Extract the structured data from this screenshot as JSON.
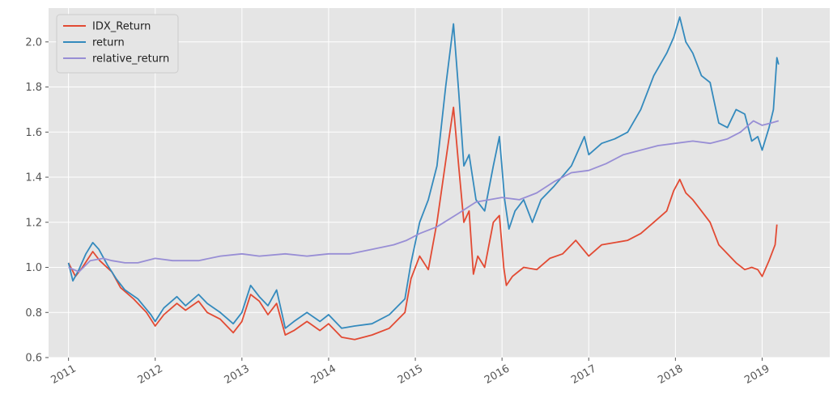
{
  "chart_data": {
    "type": "line",
    "title": "",
    "xlabel": "",
    "ylabel": "",
    "xlim": [
      2010.77,
      2019.78
    ],
    "ylim": [
      0.6,
      2.15
    ],
    "grid": true,
    "legend_position": "top-left",
    "x_ticks": [
      {
        "label": "2011",
        "value": 2011
      },
      {
        "label": "2012",
        "value": 2012
      },
      {
        "label": "2013",
        "value": 2013
      },
      {
        "label": "2014",
        "value": 2014
      },
      {
        "label": "2015",
        "value": 2015
      },
      {
        "label": "2016",
        "value": 2016
      },
      {
        "label": "2017",
        "value": 2017
      },
      {
        "label": "2018",
        "value": 2018
      },
      {
        "label": "2019",
        "value": 2019
      }
    ],
    "y_ticks": [
      {
        "label": "0.6",
        "value": 0.6
      },
      {
        "label": "0.8",
        "value": 0.8
      },
      {
        "label": "1.0",
        "value": 1.0
      },
      {
        "label": "1.2",
        "value": 1.2
      },
      {
        "label": "1.4",
        "value": 1.4
      },
      {
        "label": "1.6",
        "value": 1.6
      },
      {
        "label": "1.8",
        "value": 1.8
      },
      {
        "label": "2.0",
        "value": 2.0
      }
    ],
    "series": [
      {
        "name": "IDX_Return",
        "color": "#E24A33",
        "points": [
          [
            2011.0,
            1.02
          ],
          [
            2011.08,
            0.96
          ],
          [
            2011.16,
            1.0
          ],
          [
            2011.28,
            1.07
          ],
          [
            2011.36,
            1.03
          ],
          [
            2011.5,
            0.98
          ],
          [
            2011.6,
            0.91
          ],
          [
            2011.75,
            0.86
          ],
          [
            2011.9,
            0.8
          ],
          [
            2012.0,
            0.74
          ],
          [
            2012.1,
            0.79
          ],
          [
            2012.25,
            0.84
          ],
          [
            2012.35,
            0.81
          ],
          [
            2012.5,
            0.85
          ],
          [
            2012.6,
            0.8
          ],
          [
            2012.75,
            0.77
          ],
          [
            2012.9,
            0.71
          ],
          [
            2013.0,
            0.76
          ],
          [
            2013.1,
            0.88
          ],
          [
            2013.2,
            0.85
          ],
          [
            2013.3,
            0.79
          ],
          [
            2013.4,
            0.84
          ],
          [
            2013.5,
            0.7
          ],
          [
            2013.6,
            0.72
          ],
          [
            2013.75,
            0.76
          ],
          [
            2013.9,
            0.72
          ],
          [
            2014.0,
            0.75
          ],
          [
            2014.15,
            0.69
          ],
          [
            2014.3,
            0.68
          ],
          [
            2014.5,
            0.7
          ],
          [
            2014.7,
            0.73
          ],
          [
            2014.88,
            0.8
          ],
          [
            2014.95,
            0.95
          ],
          [
            2015.05,
            1.05
          ],
          [
            2015.15,
            0.99
          ],
          [
            2015.25,
            1.2
          ],
          [
            2015.38,
            1.55
          ],
          [
            2015.44,
            1.71
          ],
          [
            2015.5,
            1.45
          ],
          [
            2015.56,
            1.2
          ],
          [
            2015.62,
            1.25
          ],
          [
            2015.67,
            0.97
          ],
          [
            2015.72,
            1.05
          ],
          [
            2015.8,
            1.0
          ],
          [
            2015.9,
            1.2
          ],
          [
            2015.97,
            1.23
          ],
          [
            2016.02,
            1.0
          ],
          [
            2016.05,
            0.92
          ],
          [
            2016.12,
            0.96
          ],
          [
            2016.25,
            1.0
          ],
          [
            2016.4,
            0.99
          ],
          [
            2016.55,
            1.04
          ],
          [
            2016.7,
            1.06
          ],
          [
            2016.85,
            1.12
          ],
          [
            2017.0,
            1.05
          ],
          [
            2017.15,
            1.1
          ],
          [
            2017.3,
            1.11
          ],
          [
            2017.45,
            1.12
          ],
          [
            2017.6,
            1.15
          ],
          [
            2017.75,
            1.2
          ],
          [
            2017.9,
            1.25
          ],
          [
            2017.98,
            1.34
          ],
          [
            2018.05,
            1.39
          ],
          [
            2018.12,
            1.33
          ],
          [
            2018.2,
            1.3
          ],
          [
            2018.3,
            1.25
          ],
          [
            2018.4,
            1.2
          ],
          [
            2018.5,
            1.1
          ],
          [
            2018.6,
            1.06
          ],
          [
            2018.7,
            1.02
          ],
          [
            2018.8,
            0.99
          ],
          [
            2018.88,
            1.0
          ],
          [
            2018.95,
            0.99
          ],
          [
            2019.0,
            0.96
          ],
          [
            2019.08,
            1.03
          ],
          [
            2019.15,
            1.1
          ],
          [
            2019.17,
            1.19
          ]
        ]
      },
      {
        "name": "return",
        "color": "#348ABD",
        "points": [
          [
            2011.0,
            1.02
          ],
          [
            2011.05,
            0.94
          ],
          [
            2011.12,
            0.99
          ],
          [
            2011.2,
            1.06
          ],
          [
            2011.28,
            1.11
          ],
          [
            2011.35,
            1.08
          ],
          [
            2011.45,
            1.01
          ],
          [
            2011.55,
            0.95
          ],
          [
            2011.65,
            0.9
          ],
          [
            2011.8,
            0.86
          ],
          [
            2011.95,
            0.79
          ],
          [
            2012.0,
            0.76
          ],
          [
            2012.1,
            0.82
          ],
          [
            2012.25,
            0.87
          ],
          [
            2012.35,
            0.83
          ],
          [
            2012.5,
            0.88
          ],
          [
            2012.6,
            0.84
          ],
          [
            2012.75,
            0.8
          ],
          [
            2012.9,
            0.75
          ],
          [
            2013.0,
            0.8
          ],
          [
            2013.1,
            0.92
          ],
          [
            2013.2,
            0.87
          ],
          [
            2013.3,
            0.83
          ],
          [
            2013.4,
            0.9
          ],
          [
            2013.5,
            0.73
          ],
          [
            2013.6,
            0.76
          ],
          [
            2013.75,
            0.8
          ],
          [
            2013.9,
            0.76
          ],
          [
            2014.0,
            0.79
          ],
          [
            2014.15,
            0.73
          ],
          [
            2014.3,
            0.74
          ],
          [
            2014.5,
            0.75
          ],
          [
            2014.7,
            0.79
          ],
          [
            2014.88,
            0.86
          ],
          [
            2014.95,
            1.02
          ],
          [
            2015.05,
            1.2
          ],
          [
            2015.15,
            1.3
          ],
          [
            2015.25,
            1.45
          ],
          [
            2015.35,
            1.8
          ],
          [
            2015.44,
            2.08
          ],
          [
            2015.5,
            1.78
          ],
          [
            2015.56,
            1.45
          ],
          [
            2015.62,
            1.5
          ],
          [
            2015.7,
            1.3
          ],
          [
            2015.8,
            1.25
          ],
          [
            2015.9,
            1.45
          ],
          [
            2015.97,
            1.58
          ],
          [
            2016.03,
            1.3
          ],
          [
            2016.08,
            1.17
          ],
          [
            2016.15,
            1.25
          ],
          [
            2016.25,
            1.3
          ],
          [
            2016.35,
            1.2
          ],
          [
            2016.45,
            1.3
          ],
          [
            2016.6,
            1.36
          ],
          [
            2016.8,
            1.45
          ],
          [
            2016.95,
            1.58
          ],
          [
            2017.0,
            1.5
          ],
          [
            2017.15,
            1.55
          ],
          [
            2017.3,
            1.57
          ],
          [
            2017.45,
            1.6
          ],
          [
            2017.6,
            1.7
          ],
          [
            2017.75,
            1.85
          ],
          [
            2017.9,
            1.95
          ],
          [
            2017.98,
            2.02
          ],
          [
            2018.05,
            2.11
          ],
          [
            2018.12,
            2.0
          ],
          [
            2018.2,
            1.95
          ],
          [
            2018.3,
            1.85
          ],
          [
            2018.4,
            1.82
          ],
          [
            2018.5,
            1.64
          ],
          [
            2018.6,
            1.62
          ],
          [
            2018.7,
            1.7
          ],
          [
            2018.8,
            1.68
          ],
          [
            2018.88,
            1.56
          ],
          [
            2018.95,
            1.58
          ],
          [
            2019.0,
            1.52
          ],
          [
            2019.08,
            1.62
          ],
          [
            2019.13,
            1.7
          ],
          [
            2019.17,
            1.93
          ],
          [
            2019.19,
            1.9
          ]
        ]
      },
      {
        "name": "relative_return",
        "color": "#988ED5",
        "points": [
          [
            2011.0,
            1.0
          ],
          [
            2011.12,
            0.98
          ],
          [
            2011.25,
            1.03
          ],
          [
            2011.4,
            1.04
          ],
          [
            2011.5,
            1.03
          ],
          [
            2011.65,
            1.02
          ],
          [
            2011.8,
            1.02
          ],
          [
            2012.0,
            1.04
          ],
          [
            2012.2,
            1.03
          ],
          [
            2012.5,
            1.03
          ],
          [
            2012.75,
            1.05
          ],
          [
            2013.0,
            1.06
          ],
          [
            2013.2,
            1.05
          ],
          [
            2013.5,
            1.06
          ],
          [
            2013.75,
            1.05
          ],
          [
            2014.0,
            1.06
          ],
          [
            2014.25,
            1.06
          ],
          [
            2014.5,
            1.08
          ],
          [
            2014.75,
            1.1
          ],
          [
            2014.9,
            1.12
          ],
          [
            2015.05,
            1.15
          ],
          [
            2015.25,
            1.18
          ],
          [
            2015.5,
            1.24
          ],
          [
            2015.7,
            1.29
          ],
          [
            2016.0,
            1.31
          ],
          [
            2016.2,
            1.3
          ],
          [
            2016.4,
            1.33
          ],
          [
            2016.6,
            1.38
          ],
          [
            2016.8,
            1.42
          ],
          [
            2017.0,
            1.43
          ],
          [
            2017.2,
            1.46
          ],
          [
            2017.4,
            1.5
          ],
          [
            2017.6,
            1.52
          ],
          [
            2017.8,
            1.54
          ],
          [
            2018.0,
            1.55
          ],
          [
            2018.2,
            1.56
          ],
          [
            2018.4,
            1.55
          ],
          [
            2018.6,
            1.57
          ],
          [
            2018.75,
            1.6
          ],
          [
            2018.9,
            1.65
          ],
          [
            2019.0,
            1.63
          ],
          [
            2019.1,
            1.64
          ],
          [
            2019.19,
            1.65
          ]
        ]
      }
    ]
  }
}
